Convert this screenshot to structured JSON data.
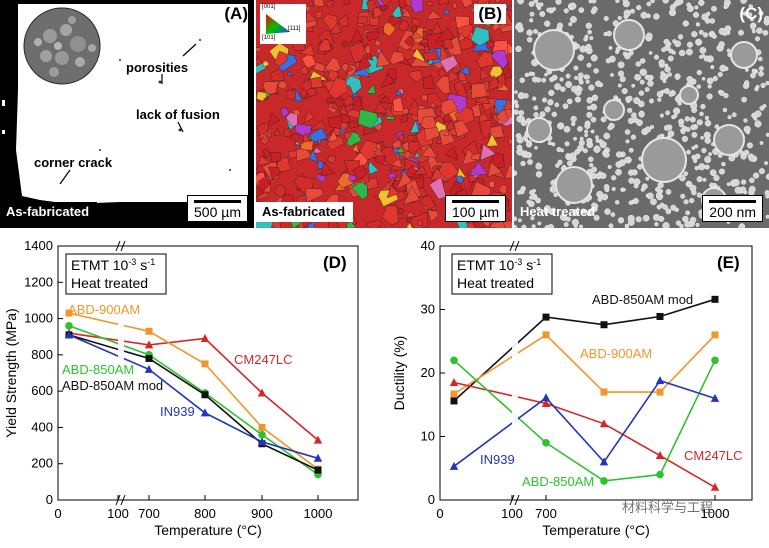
{
  "panel_a": {
    "label": "(A)",
    "state": "As-fabricated",
    "scale_bar": "500 µm",
    "annotations": {
      "porosities": "porosities",
      "lack_of_fusion": "lack of fusion",
      "corner_crack": "corner crack"
    }
  },
  "panel_b": {
    "label": "(B)",
    "state": "As-fabricated",
    "scale_bar": "100 µm",
    "ipf": {
      "top": "[001]",
      "right": "[111]",
      "left": "[101]"
    }
  },
  "panel_c": {
    "label": "(C)",
    "state": "Heat treated",
    "scale_bar": "200 nm"
  },
  "colors": {
    "cm247lc": "#d62728",
    "abd900am": "#f0962a",
    "abd850am": "#2fc22f",
    "abd850ammod": "#111111",
    "in939": "#2434b4"
  },
  "watermark": "材料科学与工程",
  "chart_data": [
    {
      "type": "line",
      "panel_label": "(D)",
      "title_line1": "ETMT 10",
      "title_exp": "-3",
      "title_unit": " s",
      "title_unit_exp": "-1",
      "title_line2": "Heat treated",
      "xlabel": "Temperature (°C)",
      "ylabel": "Yield Strength (MPa)",
      "y_ticks": [
        "0",
        "200",
        "400",
        "600",
        "800",
        "1000",
        "1200",
        "1400"
      ],
      "x_ticks": [
        "0",
        "100",
        "700",
        "800",
        "900",
        "1000"
      ],
      "ylim": [
        0,
        1400
      ],
      "series": [
        {
          "name": "CM247LC",
          "key": "cm247lc",
          "x": [
            20,
            700,
            800,
            900,
            1000
          ],
          "values": [
            920,
            855,
            890,
            590,
            330
          ]
        },
        {
          "name": "ABD-900AM",
          "key": "abd900am",
          "x": [
            20,
            700,
            800,
            900,
            1000
          ],
          "values": [
            1030,
            930,
            750,
            400,
            170
          ]
        },
        {
          "name": "ABD-850AM",
          "key": "abd850am",
          "x": [
            20,
            700,
            800,
            900,
            1000
          ],
          "values": [
            960,
            800,
            590,
            360,
            140
          ]
        },
        {
          "name": "ABD-850AM mod",
          "key": "abd850ammod",
          "x": [
            20,
            700,
            800,
            900,
            1000
          ],
          "values": [
            910,
            780,
            580,
            310,
            165
          ]
        },
        {
          "name": "IN939",
          "key": "in939",
          "x": [
            20,
            700,
            800,
            900,
            1000
          ],
          "values": [
            910,
            720,
            480,
            320,
            230
          ]
        }
      ]
    },
    {
      "type": "line",
      "panel_label": "(E)",
      "title_line1": "ETMT 10",
      "title_exp": "-3",
      "title_unit": " s",
      "title_unit_exp": "-1",
      "title_line2": "Heat treated",
      "xlabel": "Temperature (°C)",
      "ylabel": "Ductility (%)",
      "y_ticks": [
        "0",
        "10",
        "20",
        "30",
        "40"
      ],
      "x_ticks": [
        "0",
        "100",
        "700",
        "1000"
      ],
      "ylim": [
        0,
        40
      ],
      "series": [
        {
          "name": "ABD-850AM mod",
          "key": "abd850ammod",
          "x": [
            20,
            700,
            800,
            900,
            1000
          ],
          "values": [
            15.6,
            28.8,
            27.6,
            28.9,
            31.6
          ]
        },
        {
          "name": "ABD-900AM",
          "key": "abd900am",
          "x": [
            20,
            700,
            800,
            900,
            1000
          ],
          "values": [
            16.7,
            26,
            17,
            17,
            26
          ]
        },
        {
          "name": "CM247LC",
          "key": "cm247lc",
          "x": [
            20,
            700,
            800,
            900,
            1000
          ],
          "values": [
            18.5,
            15.2,
            12,
            7,
            2
          ]
        },
        {
          "name": "ABD-850AM",
          "key": "abd850am",
          "x": [
            20,
            700,
            800,
            900,
            1000
          ],
          "values": [
            22,
            9,
            3,
            4,
            22
          ]
        },
        {
          "name": "IN939",
          "key": "in939",
          "x": [
            20,
            700,
            800,
            900,
            1000
          ],
          "values": [
            5.3,
            16.1,
            6,
            18.8,
            16
          ]
        }
      ]
    }
  ]
}
